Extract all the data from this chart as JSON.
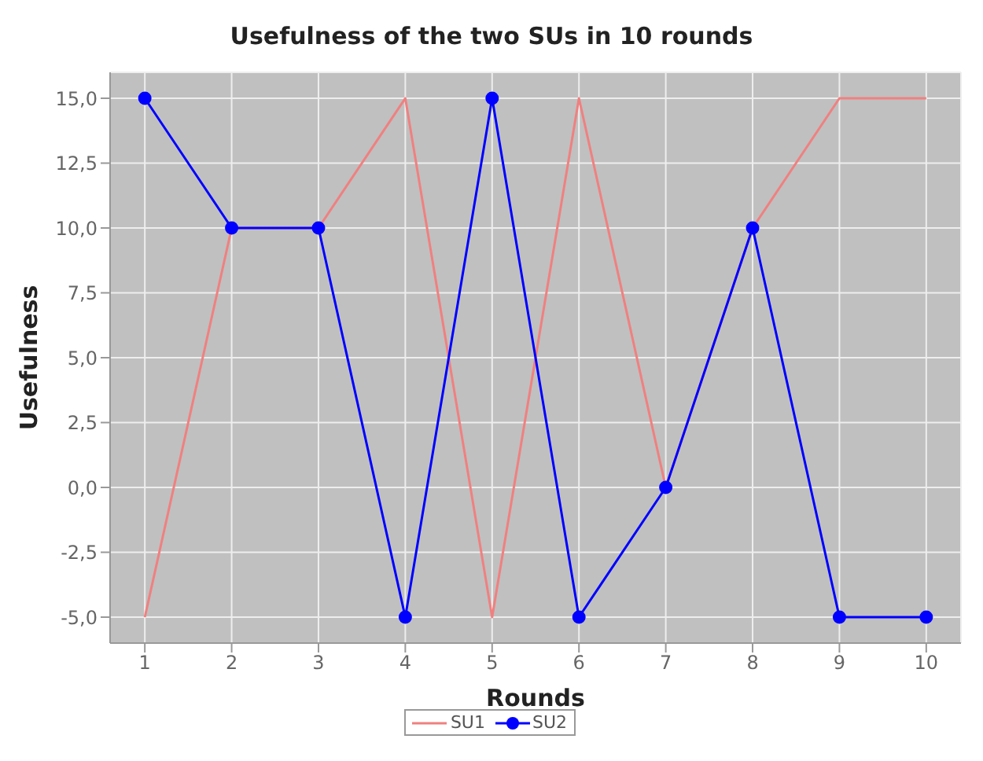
{
  "chart_data": {
    "type": "line",
    "title": "Usefulness of the two SUs in 10 rounds",
    "xlabel": "Rounds",
    "ylabel": "Usefulness",
    "x": [
      1,
      2,
      3,
      4,
      5,
      6,
      7,
      8,
      9,
      10
    ],
    "series": [
      {
        "name": "SU1",
        "color": "#f08080",
        "marker": "none",
        "values": [
          -5,
          10,
          10,
          15,
          -5,
          15,
          0,
          10,
          15,
          15
        ]
      },
      {
        "name": "SU2",
        "color": "#0000ff",
        "marker": "circle",
        "values": [
          15,
          10,
          10,
          -5,
          15,
          -5,
          0,
          10,
          -5,
          -5
        ]
      }
    ],
    "xlim": [
      0.6,
      10.4
    ],
    "xticks": [
      1,
      2,
      3,
      4,
      5,
      6,
      7,
      8,
      9,
      10
    ],
    "ylim": [
      -6,
      16
    ],
    "yticks": [
      {
        "value": -5,
        "label": "-5,0"
      },
      {
        "value": -2.5,
        "label": "-2,5"
      },
      {
        "value": 0,
        "label": "0,0"
      },
      {
        "value": 2.5,
        "label": "2,5"
      },
      {
        "value": 5,
        "label": "5,0"
      },
      {
        "value": 7.5,
        "label": "7,5"
      },
      {
        "value": 10,
        "label": "10,0"
      },
      {
        "value": 12.5,
        "label": "12,5"
      },
      {
        "value": 15,
        "label": "15,0"
      }
    ],
    "grid": true,
    "legend": "bottom",
    "line_style": "solid"
  }
}
